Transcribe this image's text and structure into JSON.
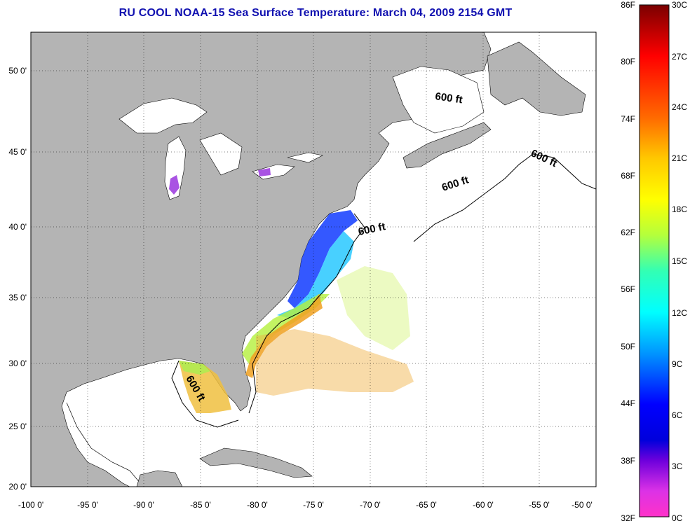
{
  "title": "RU COOL  NOAA-15  Sea Surface Temperature:  March 04, 2009 2154 GMT",
  "lat_labels": [
    "50 0'",
    "45 0'",
    "40 0'",
    "35 0'",
    "30 0'",
    "25 0'",
    "20 0'"
  ],
  "lon_labels": [
    "-100 0'",
    "-95 0'",
    "-90 0'",
    "-85 0'",
    "-80 0'",
    "-75 0'",
    "-70 0'",
    "-65 0'",
    "-60 0'",
    "-55 0'",
    "-50 0'"
  ],
  "isobath_labels": [
    "600 ft",
    "600 ft",
    "600 ft",
    "600 ft",
    "600 ft"
  ],
  "colorbar": {
    "fahrenheit": [
      "86F",
      "80F",
      "74F",
      "68F",
      "62F",
      "56F",
      "50F",
      "44F",
      "38F",
      "32F"
    ],
    "celsius": [
      "30C",
      "27C",
      "24C",
      "21C",
      "18C",
      "15C",
      "12C",
      "9C",
      "6C",
      "3C",
      "0C"
    ]
  },
  "colors": {
    "land": "#b4b4b4",
    "ocean": "#ffffff",
    "title": "#1010b0"
  }
}
